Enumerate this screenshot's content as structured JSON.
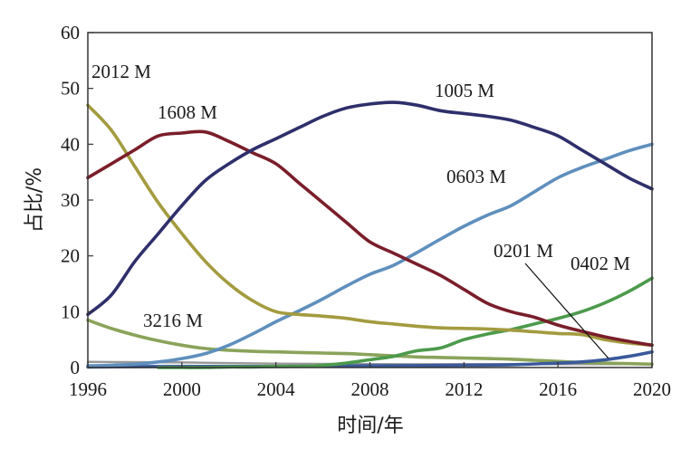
{
  "chart_data": {
    "type": "line",
    "xlabel": "时间/年",
    "ylabel": "占比/%",
    "xlim": [
      1996,
      2020
    ],
    "ylim": [
      0,
      60
    ],
    "x_ticks": [
      "1996",
      "2000",
      "2004",
      "2008",
      "2012",
      "2016",
      "2020"
    ],
    "y_ticks": [
      "0",
      "10",
      "20",
      "30",
      "40",
      "50",
      "60"
    ],
    "grid": false,
    "series": [
      {
        "name": "2012 M",
        "color": "#a39b3f",
        "points": [
          [
            1996,
            47
          ],
          [
            1997,
            42.5
          ],
          [
            1998,
            36
          ],
          [
            1999,
            29.5
          ],
          [
            2000,
            24
          ],
          [
            2001,
            19
          ],
          [
            2002,
            15
          ],
          [
            2003,
            12
          ],
          [
            2004,
            10
          ],
          [
            2005,
            9.5
          ],
          [
            2006,
            9.2
          ],
          [
            2007,
            8.8
          ],
          [
            2008,
            8.2
          ],
          [
            2009,
            7.8
          ],
          [
            2010,
            7.4
          ],
          [
            2011,
            7.1
          ],
          [
            2012,
            7
          ],
          [
            2013,
            6.9
          ],
          [
            2014,
            6.7
          ],
          [
            2015,
            6.4
          ],
          [
            2016,
            6.1
          ],
          [
            2017,
            5.9
          ],
          [
            2018,
            5
          ],
          [
            2019,
            4.4
          ],
          [
            2020,
            4
          ]
        ]
      },
      {
        "name": "1608 M",
        "color": "#7a1e2a",
        "points": [
          [
            1996,
            34
          ],
          [
            1997,
            36.5
          ],
          [
            1998,
            39
          ],
          [
            1999,
            41.5
          ],
          [
            2000,
            42
          ],
          [
            2001,
            42.2
          ],
          [
            2002,
            40.5
          ],
          [
            2003,
            38.5
          ],
          [
            2004,
            36.5
          ],
          [
            2005,
            33
          ],
          [
            2006,
            29.5
          ],
          [
            2007,
            26
          ],
          [
            2008,
            22.5
          ],
          [
            2009,
            20.5
          ],
          [
            2010,
            18.5
          ],
          [
            2011,
            16.5
          ],
          [
            2012,
            14
          ],
          [
            2013,
            11.5
          ],
          [
            2014,
            10
          ],
          [
            2015,
            9
          ],
          [
            2016,
            7.6
          ],
          [
            2017,
            6.5
          ],
          [
            2018,
            5.5
          ],
          [
            2019,
            4.7
          ],
          [
            2020,
            4
          ]
        ]
      },
      {
        "name": "1005 M",
        "color": "#2e2f6b",
        "points": [
          [
            1996,
            9.5
          ],
          [
            1997,
            13
          ],
          [
            1998,
            19
          ],
          [
            1999,
            24
          ],
          [
            2000,
            29
          ],
          [
            2001,
            33.5
          ],
          [
            2002,
            36.5
          ],
          [
            2003,
            39
          ],
          [
            2004,
            41
          ],
          [
            2005,
            43
          ],
          [
            2006,
            45
          ],
          [
            2007,
            46.5
          ],
          [
            2008,
            47.2
          ],
          [
            2009,
            47.5
          ],
          [
            2010,
            47
          ],
          [
            2011,
            46
          ],
          [
            2012,
            45.5
          ],
          [
            2013,
            45
          ],
          [
            2014,
            44.3
          ],
          [
            2015,
            43
          ],
          [
            2016,
            41.5
          ],
          [
            2017,
            39
          ],
          [
            2018,
            36.5
          ],
          [
            2019,
            34
          ],
          [
            2020,
            32
          ]
        ]
      },
      {
        "name": "0603 M",
        "color": "#5f8fbd",
        "points": [
          [
            1996,
            0.3
          ],
          [
            1997,
            0.4
          ],
          [
            1998,
            0.6
          ],
          [
            1999,
            1
          ],
          [
            2000,
            1.6
          ],
          [
            2001,
            2.5
          ],
          [
            2002,
            4
          ],
          [
            2003,
            6
          ],
          [
            2004,
            8.2
          ],
          [
            2005,
            10.2
          ],
          [
            2006,
            12.3
          ],
          [
            2007,
            14.6
          ],
          [
            2008,
            16.7
          ],
          [
            2009,
            18.3
          ],
          [
            2010,
            20.6
          ],
          [
            2011,
            23
          ],
          [
            2012,
            25.3
          ],
          [
            2013,
            27.3
          ],
          [
            2014,
            29
          ],
          [
            2015,
            31.5
          ],
          [
            2016,
            34
          ],
          [
            2017,
            35.8
          ],
          [
            2018,
            37.3
          ],
          [
            2019,
            38.8
          ],
          [
            2020,
            40
          ]
        ]
      },
      {
        "name": "3216 M",
        "color": "#8aa35a",
        "points": [
          [
            1996,
            8.5
          ],
          [
            1997,
            7
          ],
          [
            1998,
            5.8
          ],
          [
            1999,
            4.8
          ],
          [
            2000,
            4
          ],
          [
            2001,
            3.4
          ],
          [
            2002,
            3.1
          ],
          [
            2003,
            2.9
          ],
          [
            2004,
            2.8
          ],
          [
            2005,
            2.7
          ],
          [
            2006,
            2.6
          ],
          [
            2007,
            2.5
          ],
          [
            2008,
            2.3
          ],
          [
            2009,
            2.1
          ],
          [
            2010,
            1.9
          ],
          [
            2011,
            1.8
          ],
          [
            2012,
            1.7
          ],
          [
            2013,
            1.6
          ],
          [
            2014,
            1.5
          ],
          [
            2015,
            1.3
          ],
          [
            2016,
            1.1
          ],
          [
            2017,
            0.9
          ],
          [
            2018,
            0.8
          ],
          [
            2019,
            0.7
          ],
          [
            2020,
            0.6
          ]
        ]
      },
      {
        "name": "0402 M",
        "color": "#4c9a4c",
        "points": [
          [
            1999,
            0
          ],
          [
            2000,
            0
          ],
          [
            2001,
            0
          ],
          [
            2002,
            0.1
          ],
          [
            2003,
            0.1
          ],
          [
            2004,
            0.2
          ],
          [
            2005,
            0.2
          ],
          [
            2006,
            0.4
          ],
          [
            2007,
            0.8
          ],
          [
            2008,
            1.4
          ],
          [
            2009,
            2
          ],
          [
            2010,
            3
          ],
          [
            2011,
            3.5
          ],
          [
            2012,
            5
          ],
          [
            2013,
            6
          ],
          [
            2014,
            6.8
          ],
          [
            2015,
            7.8
          ],
          [
            2016,
            8.8
          ],
          [
            2017,
            10
          ],
          [
            2018,
            11.6
          ],
          [
            2019,
            13.6
          ],
          [
            2020,
            16
          ]
        ]
      },
      {
        "name": "0201 M",
        "color": "#3a5a9b",
        "points": [
          [
            1996,
            0.1
          ],
          [
            2000,
            0.2
          ],
          [
            2004,
            0.2
          ],
          [
            2008,
            0.3
          ],
          [
            2012,
            0.4
          ],
          [
            2014,
            0.5
          ],
          [
            2016,
            0.8
          ],
          [
            2017,
            1
          ],
          [
            2018,
            1.4
          ],
          [
            2019,
            2
          ],
          [
            2020,
            2.8
          ]
        ]
      },
      {
        "name": "",
        "color": "#9a9a9a",
        "points": [
          [
            1996,
            1
          ],
          [
            2000,
            0.9
          ],
          [
            2004,
            0.7
          ],
          [
            2008,
            0.6
          ],
          [
            2012,
            0.6
          ],
          [
            2016,
            0.6
          ],
          [
            2020,
            0.6
          ]
        ]
      }
    ]
  }
}
